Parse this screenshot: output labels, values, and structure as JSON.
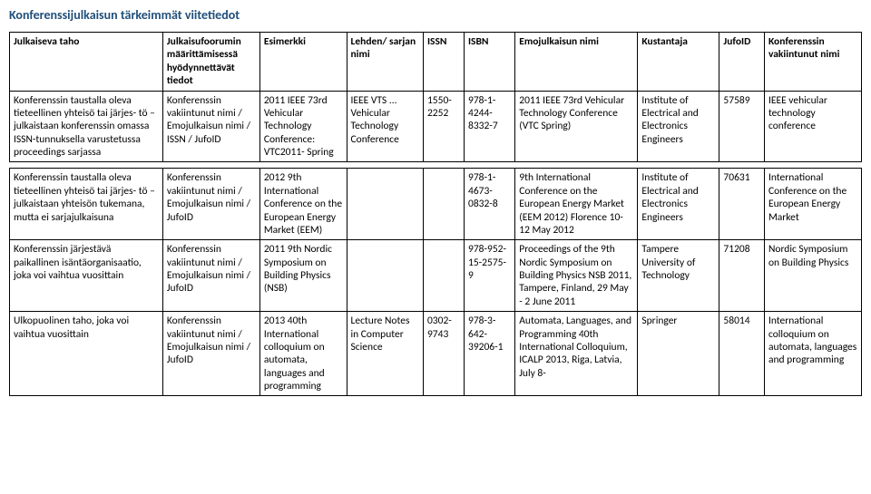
{
  "title": "Konferenssijulkaisun tärkeimmät viitetiedot",
  "headers": {
    "c1": "Julkaiseva taho",
    "c2": "Julkaisufoorumin määrittämisessä hyödynnettävät tiedot",
    "c3": "Esimerkki",
    "c4": "Lehden/ sarjan nimi",
    "c5": "ISSN",
    "c6": "ISBN",
    "c7": "Emojulkaisun nimi",
    "c8": "Kustantaja",
    "c9": "JufoID",
    "c10": "Konferenssin vakiintunut nimi"
  },
  "rows": [
    {
      "c1": "Konferenssin taustalla oleva tieteellinen yhteisö tai järjes- tö – julkaistaan konferenssin omassa ISSN-tunnuksella varustetussa proceedings sarjassa",
      "c2": "Konferenssin vakiintunut nimi / Emojulkaisun nimi / ISSN / JufoID",
      "c3": "2011 IEEE 73rd Vehicular Technology Conference: VTC2011- Spring",
      "c4": "IEEE VTS ... Vehicular Technology Conference",
      "c5": "1550-2252",
      "c6": "978-1-4244-8332-7",
      "c7": "2011 IEEE 73rd Vehicular Technology Conference (VTC Spring)",
      "c8": "Institute of Electrical and Electronics Engineers",
      "c9": "57589",
      "c10": "IEEE vehicular technology conference"
    },
    {
      "c1": "Konferenssin taustalla oleva tieteellinen yhteisö tai järjes- tö – julkaistaan yhteisön tukemana, mutta ei sarjajulkaisuna",
      "c2": "Konferenssin vakiintunut nimi / Emojulkaisun nimi / JufoID",
      "c3": "2012 9th International Conference on the European Energy Market (EEM)",
      "c4": "",
      "c5": "",
      "c6": "978-1-4673-0832-8",
      "c7": "9th International Conference on the European Energy Market (EEM 2012) Florence 10-12 May 2012",
      "c8": "Institute of Electrical and Electronics Engineers",
      "c9": "70631",
      "c10": "International Conference on the European Energy Market"
    },
    {
      "c1": "Konferenssin järjestävä paikallinen isäntäorganisaatio, joka voi vaihtua vuosittain",
      "c2": "Konferenssin vakiintunut nimi / Emojulkaisun nimi / JufoID",
      "c3": "2011 9th Nordic Symposium on Building Physics (NSB)",
      "c4": "",
      "c5": "",
      "c6": "978-952-15-2575-9",
      "c7": "Proceedings of the 9th Nordic Symposium on Building Physics NSB 2011, Tampere, Finland, 29 May - 2 June 2011",
      "c8": "Tampere University of Technology",
      "c9": "71208",
      "c10": "Nordic Symposium on Building Physics"
    },
    {
      "c1": "Ulkopuolinen taho, joka voi vaihtua vuosittain",
      "c2": "Konferenssin vakiintunut nimi / Emojulkaisun nimi / JufoID",
      "c3": "2013 40th International colloquium on automata, languages and programming",
      "c4": "Lecture Notes in Computer Science",
      "c5": "0302-9743",
      "c6": "978-3-642-39206-1",
      "c7": "Automata, Languages, and Programming 40th International Colloquium, ICALP 2013, Riga, Latvia, July 8-",
      "c8": "Springer",
      "c9": "58014",
      "c10": "International colloquium on automata, languages and programming"
    }
  ]
}
